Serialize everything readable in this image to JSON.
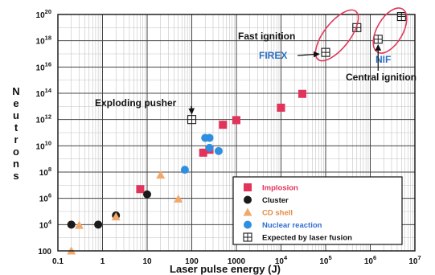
{
  "chart_data": {
    "type": "scatter",
    "xlabel": "Laser pulse energy (J)",
    "ylabel": "Neutrons",
    "x_scale": "log",
    "y_scale": "log",
    "xlim": [
      0.1,
      10000000
    ],
    "ylim": [
      100,
      100000000000000000000
    ],
    "grid": true,
    "legend_position": "bottom-right",
    "x_ticks": [
      {
        "value": 0.1,
        "label": "0.1"
      },
      {
        "value": 1,
        "label": "1"
      },
      {
        "value": 10,
        "label": "10"
      },
      {
        "value": 100,
        "label": "100"
      },
      {
        "value": 1000,
        "label": "1000"
      },
      {
        "value": 10000,
        "base": "10",
        "exp": "4"
      },
      {
        "value": 100000,
        "base": "10",
        "exp": "5"
      },
      {
        "value": 1000000,
        "base": "10",
        "exp": "6"
      },
      {
        "value": 10000000,
        "base": "10",
        "exp": "7"
      }
    ],
    "y_ticks": [
      {
        "value": 100,
        "label": "100"
      },
      {
        "value": 10000,
        "base": "10",
        "exp": "4"
      },
      {
        "value": 1000000,
        "base": "10",
        "exp": "6"
      },
      {
        "value": 100000000,
        "base": "10",
        "exp": "8"
      },
      {
        "value": 10000000000,
        "base": "10",
        "exp": "10"
      },
      {
        "value": 1000000000000,
        "base": "10",
        "exp": "12"
      },
      {
        "value": 100000000000000,
        "base": "10",
        "exp": "14"
      },
      {
        "value": 10000000000000000,
        "base": "10",
        "exp": "16"
      },
      {
        "value": 1000000000000000000,
        "base": "10",
        "exp": "18"
      },
      {
        "value": 100000000000000000000,
        "base": "10",
        "exp": "20"
      }
    ],
    "series": [
      {
        "name": "Implosion",
        "marker": "square",
        "color": "#e2335a",
        "points": [
          [
            7,
            5000000.0
          ],
          [
            180,
            3000000000.0
          ],
          [
            250,
            5000000000.0
          ],
          [
            500,
            400000000000.0
          ],
          [
            1000,
            900000000000.0
          ],
          [
            10000,
            8000000000000.0
          ],
          [
            30000,
            90000000000000.0
          ]
        ]
      },
      {
        "name": "Cluster",
        "marker": "circle",
        "color": "#1a1a1a",
        "points": [
          [
            0.2,
            10000.0
          ],
          [
            0.8,
            10000.0
          ],
          [
            2,
            50000.0
          ],
          [
            10,
            2000000.0
          ]
        ]
      },
      {
        "name": "CD shell",
        "marker": "triangle",
        "color": "#f2a86b",
        "points": [
          [
            0.2,
            100
          ],
          [
            0.3,
            9000.0
          ],
          [
            2,
            40000.0
          ],
          [
            20,
            60000000.0
          ],
          [
            50,
            900000.0
          ]
        ]
      },
      {
        "name": "Nuclear reaction",
        "marker": "circle",
        "color": "#2e8fe0",
        "points": [
          [
            70,
            150000000.0
          ],
          [
            200,
            40000000000.0
          ],
          [
            250,
            40000000000.0
          ],
          [
            250,
            7000000000.0
          ],
          [
            400,
            4000000000.0
          ]
        ]
      },
      {
        "name": "Expected by laser fusion",
        "marker": "boxplus",
        "color": "#1a1a1a",
        "points": [
          [
            100,
            1000000000000.0
          ],
          [
            100000,
            1.3e+17
          ],
          [
            500000,
            1e+19
          ],
          [
            1500000,
            1.3e+18
          ],
          [
            5000000,
            7e+19
          ]
        ]
      }
    ],
    "annotations": [
      {
        "id": "fast-ignition",
        "text": "Fast ignition",
        "color": "#111111"
      },
      {
        "id": "firex",
        "text": "FIREX",
        "color": "#2b6fc4"
      },
      {
        "id": "nif",
        "text": "NIF",
        "color": "#2b6fc4"
      },
      {
        "id": "central-ignition",
        "text": "Central ignition",
        "color": "#111111"
      },
      {
        "id": "exploding-pusher",
        "text": "Exploding pusher",
        "color": "#111111"
      }
    ]
  }
}
